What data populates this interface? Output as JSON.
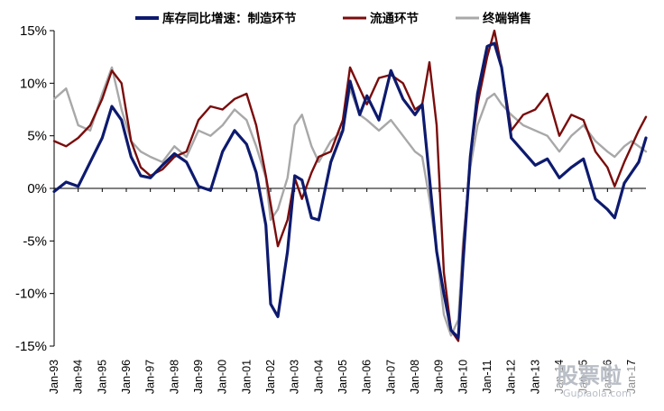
{
  "chart_data": {
    "type": "line",
    "title": "",
    "xlabel": "",
    "ylabel": "",
    "ylim": [
      -15,
      15
    ],
    "yticks": [
      "15%",
      "10%",
      "5%",
      "0%",
      "-5%",
      "-10%",
      "-15%"
    ],
    "yticks_values": [
      15,
      10,
      5,
      0,
      -5,
      -10,
      -15
    ],
    "xlim": [
      1993.0,
      2017.6
    ],
    "categories": [
      "Jan-93",
      "Jan-94",
      "Jan-95",
      "Jan-96",
      "Jan-97",
      "Jan-98",
      "Jan-99",
      "Jan-00",
      "Jan-01",
      "Jan-02",
      "Jan-03",
      "Jan-04",
      "Jan-05",
      "Jan-06",
      "Jan-07",
      "Jan-08",
      "Jan-09",
      "Jan-10",
      "Jan-11",
      "Jan-12",
      "Jan-13",
      "Jan-14",
      "Jan-15",
      "Jan-16",
      "Jan-17"
    ],
    "grid": false,
    "legend_position": "top",
    "series": [
      {
        "name": "库存同比增速：制造环节",
        "color": "#0d1a6e",
        "x": [
          1993.0,
          1993.5,
          1994.0,
          1994.5,
          1995.0,
          1995.4,
          1995.8,
          1996.2,
          1996.6,
          1997.0,
          1997.5,
          1998.0,
          1998.5,
          1999.0,
          1999.5,
          2000.0,
          2000.5,
          2001.0,
          2001.4,
          2001.8,
          2002.0,
          2002.3,
          2002.7,
          2003.0,
          2003.3,
          2003.7,
          2004.0,
          2004.5,
          2005.0,
          2005.3,
          2005.7,
          2006.0,
          2006.5,
          2007.0,
          2007.5,
          2008.0,
          2008.3,
          2008.6,
          2008.9,
          2009.2,
          2009.5,
          2009.8,
          2010.0,
          2010.3,
          2010.6,
          2011.0,
          2011.3,
          2011.6,
          2012.0,
          2012.5,
          2013.0,
          2013.5,
          2014.0,
          2014.5,
          2015.0,
          2015.5,
          2016.0,
          2016.3,
          2016.7,
          2017.0,
          2017.3,
          2017.6
        ],
        "values": [
          -0.3,
          0.6,
          0.2,
          2.5,
          4.8,
          7.8,
          6.5,
          3.0,
          1.2,
          1.0,
          2.2,
          3.3,
          2.5,
          0.2,
          -0.2,
          3.5,
          5.5,
          4.2,
          1.5,
          -3.5,
          -11.0,
          -12.2,
          -6.0,
          1.2,
          0.8,
          -2.8,
          -3.0,
          2.5,
          5.5,
          10.2,
          7.0,
          8.8,
          6.5,
          11.2,
          8.5,
          7.0,
          8.0,
          1.0,
          -6.0,
          -10.0,
          -13.5,
          -14.2,
          -7.0,
          3.0,
          9.0,
          13.5,
          13.8,
          11.5,
          4.8,
          3.5,
          2.2,
          2.8,
          1.0,
          2.0,
          2.8,
          -1.0,
          -2.0,
          -2.8,
          0.5,
          1.5,
          2.5,
          4.8
        ]
      },
      {
        "name": "流通环节",
        "color": "#7a0c0c",
        "x": [
          1993.0,
          1993.5,
          1994.0,
          1994.5,
          1995.0,
          1995.4,
          1995.8,
          1996.2,
          1996.6,
          1997.0,
          1997.5,
          1998.0,
          1998.5,
          1999.0,
          1999.5,
          2000.0,
          2000.5,
          2001.0,
          2001.4,
          2001.8,
          2002.0,
          2002.3,
          2002.7,
          2003.0,
          2003.3,
          2003.7,
          2004.0,
          2004.5,
          2005.0,
          2005.3,
          2005.7,
          2006.0,
          2006.5,
          2007.0,
          2007.5,
          2008.0,
          2008.3,
          2008.6,
          2008.9,
          2009.2,
          2009.5,
          2009.8,
          2010.0,
          2010.3,
          2010.6,
          2011.0,
          2011.3,
          2011.6,
          2012.0,
          2012.5,
          2013.0,
          2013.5,
          2014.0,
          2014.5,
          2015.0,
          2015.5,
          2016.0,
          2016.3,
          2016.7,
          2017.0,
          2017.3,
          2017.6
        ],
        "values": [
          4.5,
          4.0,
          4.8,
          6.0,
          8.5,
          11.2,
          10.0,
          4.5,
          2.0,
          1.2,
          1.8,
          3.0,
          3.5,
          6.5,
          7.8,
          7.5,
          8.5,
          9.0,
          6.0,
          1.2,
          -1.5,
          -5.5,
          -3.0,
          1.0,
          -1.0,
          1.5,
          3.0,
          3.5,
          6.5,
          11.5,
          9.5,
          8.0,
          10.5,
          10.8,
          10.0,
          7.5,
          8.0,
          12.0,
          6.0,
          -8.0,
          -13.5,
          -14.5,
          -6.0,
          3.0,
          8.0,
          12.5,
          15.0,
          11.5,
          5.5,
          7.0,
          7.5,
          9.0,
          5.0,
          7.0,
          6.5,
          3.5,
          2.0,
          0.2,
          2.5,
          4.0,
          5.5,
          6.8
        ]
      },
      {
        "name": "终端销售",
        "color": "#a8a8a8",
        "x": [
          1993.0,
          1993.5,
          1994.0,
          1994.5,
          1995.0,
          1995.4,
          1995.8,
          1996.2,
          1996.6,
          1997.0,
          1997.5,
          1998.0,
          1998.5,
          1999.0,
          1999.5,
          2000.0,
          2000.5,
          2001.0,
          2001.4,
          2001.8,
          2002.0,
          2002.3,
          2002.7,
          2003.0,
          2003.3,
          2003.7,
          2004.0,
          2004.5,
          2005.0,
          2005.3,
          2005.7,
          2006.0,
          2006.5,
          2007.0,
          2007.5,
          2008.0,
          2008.3,
          2008.6,
          2008.9,
          2009.2,
          2009.5,
          2009.8,
          2010.0,
          2010.3,
          2010.6,
          2011.0,
          2011.3,
          2011.6,
          2012.0,
          2012.5,
          2013.0,
          2013.5,
          2014.0,
          2014.5,
          2015.0,
          2015.5,
          2016.0,
          2016.3,
          2016.7,
          2017.0,
          2017.3,
          2017.6
        ],
        "values": [
          8.5,
          9.5,
          6.0,
          5.5,
          9.0,
          11.5,
          7.5,
          4.5,
          3.5,
          3.0,
          2.5,
          4.0,
          3.0,
          5.5,
          5.0,
          6.0,
          7.5,
          6.5,
          4.0,
          1.0,
          -3.0,
          -2.0,
          1.0,
          6.0,
          7.0,
          4.0,
          2.5,
          4.5,
          5.5,
          9.5,
          7.0,
          6.5,
          5.5,
          6.5,
          5.0,
          3.5,
          3.0,
          -1.0,
          -6.0,
          -12.0,
          -14.0,
          -12.5,
          -5.0,
          2.0,
          6.0,
          8.5,
          9.0,
          8.0,
          7.0,
          6.0,
          5.5,
          5.0,
          3.5,
          5.0,
          6.0,
          4.5,
          3.5,
          3.0,
          4.0,
          4.5,
          4.0,
          3.5
        ]
      }
    ]
  },
  "watermark": {
    "main": "股票啦",
    "site": "Gupiaola.com"
  }
}
